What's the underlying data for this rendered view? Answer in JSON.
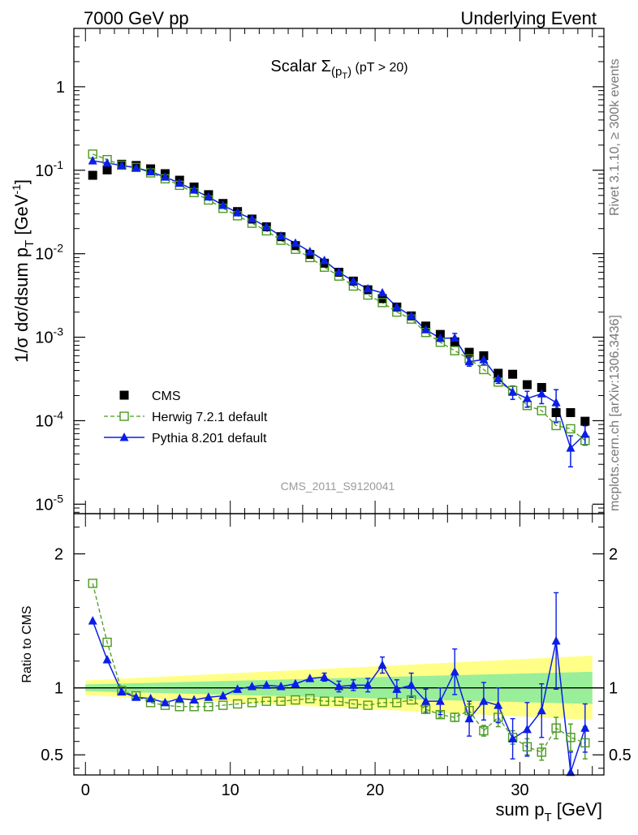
{
  "header": {
    "left": "7000 GeV pp",
    "right": "Underlying Event"
  },
  "side_labels": {
    "rivet": "Rivet 3.1.10, ≥ 300k events",
    "mcplots": "mcplots.cern.ch [arXiv:1306.3436]"
  },
  "watermark": "CMS_2011_S9120041",
  "colors": {
    "data": "#000000",
    "herwig": "#4a9a1f",
    "pythia": "#0a1ee8",
    "band_inner": "#99ee99",
    "band_outer": "#ffff88"
  },
  "chart_data": [
    {
      "type": "line",
      "panel": "main",
      "title": "Scalar Σ(p_T) (pT > 20)",
      "title_parts": {
        "main": "Scalar ",
        "sym": "Σ",
        "sub1": "(p",
        "sub2": "T",
        "sub3": ")",
        "cut": " (pT > 20)"
      },
      "ylabel": "1/σ dσ/dsum p_T [GeV^-1]",
      "ylabel_parts": {
        "a": "1/σ dσ/dsum p",
        "b": "T",
        "c": " [GeV",
        "d": "-1",
        "e": "]"
      },
      "yscale": "log",
      "ylim": [
        7.7e-06,
        5
      ],
      "xlim": [
        -0.8,
        35.8
      ],
      "y_ticks": [
        {
          "v": 1,
          "label": "1"
        },
        {
          "v": 0.1,
          "base": "10",
          "exp": "-1"
        },
        {
          "v": 0.01,
          "base": "10",
          "exp": "-2"
        },
        {
          "v": 0.001,
          "base": "10",
          "exp": "-3"
        },
        {
          "v": 0.0001,
          "base": "10",
          "exp": "-4"
        },
        {
          "v": 1e-05,
          "base": "10",
          "exp": "-5"
        }
      ],
      "legend_position": "bottom-left",
      "x": [
        0.5,
        1.5,
        2.5,
        3.5,
        4.5,
        5.5,
        6.5,
        7.5,
        8.5,
        9.5,
        10.5,
        11.5,
        12.5,
        13.5,
        14.5,
        15.5,
        16.5,
        17.5,
        18.5,
        19.5,
        20.5,
        21.5,
        22.5,
        23.5,
        24.5,
        25.5,
        26.5,
        27.5,
        28.5,
        29.5,
        30.5,
        31.5,
        32.5,
        33.5,
        34.5
      ],
      "series": [
        {
          "name": "CMS",
          "key": "data",
          "values": [
            0.087,
            0.101,
            0.118,
            0.114,
            0.104,
            0.091,
            0.076,
            0.063,
            0.051,
            0.04,
            0.032,
            0.026,
            0.021,
            0.016,
            0.0125,
            0.0098,
            0.0077,
            0.006,
            0.0047,
            0.0037,
            0.0029,
            0.0023,
            0.0018,
            0.00136,
            0.00108,
            0.00088,
            0.00066,
            0.0006,
            0.00037,
            0.00036,
            0.00027,
            0.00025,
            0.000125,
            0.000125,
            9.85e-05
          ]
        },
        {
          "name": "Herwig 7.2.1 default",
          "key": "herwig",
          "values": [
            0.156,
            0.134,
            0.115,
            0.108,
            0.093,
            0.079,
            0.066,
            0.054,
            0.044,
            0.035,
            0.0285,
            0.0232,
            0.0188,
            0.0145,
            0.0113,
            0.009,
            0.0069,
            0.0054,
            0.0041,
            0.0032,
            0.0026,
            0.002,
            0.00165,
            0.00114,
            0.00087,
            0.00069,
            0.00055,
            0.00041,
            0.00029,
            0.00023,
            0.000152,
            0.000132,
            8.75e-05,
            8e-05,
            5.8e-05
          ]
        },
        {
          "name": "Pythia 8.201 default",
          "key": "pythia",
          "values": [
            0.13,
            0.122,
            0.114,
            0.107,
            0.096,
            0.083,
            0.07,
            0.058,
            0.048,
            0.038,
            0.031,
            0.0262,
            0.021,
            0.0163,
            0.0134,
            0.0106,
            0.0083,
            0.006,
            0.0047,
            0.0038,
            0.0034,
            0.0023,
            0.0018,
            0.00123,
            0.00097,
            0.00098,
            0.00051,
            0.00054,
            0.00032,
            0.00022,
            0.000185,
            0.00021,
            0.000165,
            4.7e-05,
            6.9e-05
          ],
          "errors": [
            0,
            0,
            0,
            0,
            0,
            0,
            0,
            0,
            0,
            0,
            0,
            0,
            0,
            0,
            0,
            0,
            0,
            0,
            0,
            0,
            0,
            0,
            0,
            0,
            7e-05,
            0.00013,
            6e-05,
            7e-05,
            4e-05,
            4e-05,
            4e-05,
            5e-05,
            7e-05,
            1.9e-05,
            1.8e-05
          ]
        }
      ]
    },
    {
      "type": "line",
      "panel": "ratio",
      "ylabel": "Ratio to CMS",
      "xlabel": "sum p_T [GeV]",
      "xlabel_parts": {
        "a": "sum p",
        "b": "T",
        "c": " [GeV]"
      },
      "ylim": [
        0.35,
        2.3
      ],
      "xlim": [
        -0.8,
        35.8
      ],
      "y_ticks": [
        2,
        1,
        0.5
      ],
      "x_ticks": [
        0,
        10,
        20,
        30
      ],
      "reference_line": 1,
      "band_inner_halfwidth": {
        "x": [
          0,
          35
        ],
        "lo": [
          0.025,
          0.12
        ]
      },
      "band_outer_halfwidth": {
        "x": [
          0,
          35
        ],
        "lo": [
          0.055,
          0.24
        ]
      },
      "x": [
        0.5,
        1.5,
        2.5,
        3.5,
        4.5,
        5.5,
        6.5,
        7.5,
        8.5,
        9.5,
        10.5,
        11.5,
        12.5,
        13.5,
        14.5,
        15.5,
        16.5,
        17.5,
        18.5,
        19.5,
        20.5,
        21.5,
        22.5,
        23.5,
        24.5,
        25.5,
        26.5,
        27.5,
        28.5,
        29.5,
        30.5,
        31.5,
        32.5,
        33.5,
        34.5
      ],
      "series": [
        {
          "name": "Herwig 7.2.1 default",
          "key": "herwig",
          "values": [
            1.78,
            1.34,
            0.98,
            0.94,
            0.89,
            0.87,
            0.86,
            0.86,
            0.86,
            0.87,
            0.88,
            0.89,
            0.9,
            0.9,
            0.91,
            0.92,
            0.9,
            0.9,
            0.88,
            0.87,
            0.89,
            0.89,
            0.91,
            0.84,
            0.8,
            0.78,
            0.83,
            0.68,
            0.78,
            0.63,
            0.56,
            0.52,
            0.7,
            0.63,
            0.59
          ],
          "errors": [
            0,
            0,
            0,
            0,
            0,
            0,
            0,
            0,
            0,
            0,
            0,
            0,
            0,
            0,
            0,
            0,
            0,
            0,
            0,
            0,
            0,
            0,
            0,
            0.02,
            0.02,
            0.03,
            0.05,
            0.04,
            0.07,
            0.05,
            0.06,
            0.06,
            0.08,
            0.1,
            0.12
          ]
        },
        {
          "name": "Pythia 8.201 default",
          "key": "pythia",
          "values": [
            1.5,
            1.21,
            0.97,
            0.93,
            0.92,
            0.89,
            0.92,
            0.91,
            0.93,
            0.94,
            0.99,
            1.01,
            1.02,
            1.01,
            1.03,
            1.07,
            1.08,
            1.01,
            1.02,
            1.02,
            1.17,
            0.99,
            1.02,
            0.9,
            0.9,
            1.12,
            0.77,
            0.9,
            0.87,
            0.62,
            0.69,
            0.83,
            1.35,
            0.37,
            0.7
          ],
          "errors": [
            0,
            0,
            0,
            0,
            0,
            0,
            0,
            0,
            0,
            0,
            0,
            0,
            0,
            0,
            0,
            0,
            0.03,
            0.04,
            0.04,
            0.05,
            0.06,
            0.07,
            0.09,
            0.09,
            0.1,
            0.17,
            0.13,
            0.14,
            0.13,
            0.15,
            0.2,
            0.2,
            0.36,
            0.15,
            0.18
          ]
        }
      ]
    }
  ]
}
